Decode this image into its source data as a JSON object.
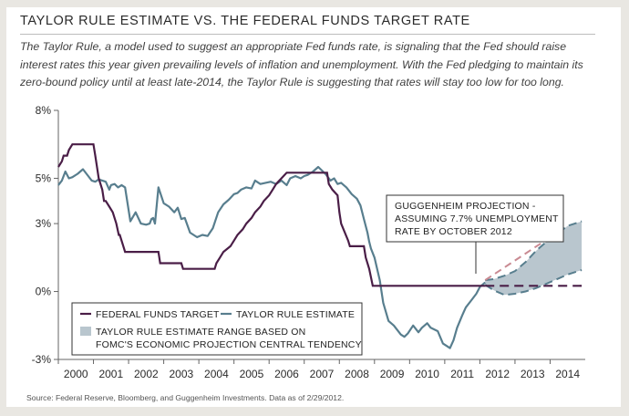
{
  "header": {
    "title": "TAYLOR RULE ESTIMATE VS. THE FEDERAL FUNDS TARGET RATE",
    "subtitle": "The Taylor Rule, a model used to suggest an appropriate Fed funds rate, is signaling that the Fed should raise interest rates this year given prevailing levels of inflation and unemployment.  With the Fed pledging to maintain its zero-bound policy until at least late-2014, the Taylor Rule is suggesting that rates will stay too low for too long."
  },
  "footer": {
    "source": "Source: Federal Reserve, Bloomberg, and Guggenheim Investments. Data as of 2/29/2012."
  },
  "chart_data": {
    "type": "line",
    "title": "TAYLOR RULE ESTIMATE VS. THE FEDERAL FUNDS TARGET RATE",
    "xlabel": "",
    "ylabel": "",
    "xlim": [
      2000,
      2015
    ],
    "ylim": [
      -3,
      8
    ],
    "y_ticks": [
      {
        "value": 8,
        "label": "8%"
      },
      {
        "value": 5,
        "label": "5%"
      },
      {
        "value": 3,
        "label": "3%"
      },
      {
        "value": 0,
        "label": "0%"
      },
      {
        "value": -3,
        "label": "-3%"
      }
    ],
    "x_ticks": [
      "2000",
      "2001",
      "2002",
      "2003",
      "2004",
      "2005",
      "2006",
      "2007",
      "2008",
      "2009",
      "2010",
      "2011",
      "2012",
      "2013",
      "2014"
    ],
    "grid": false,
    "legend_position": "bottom-left",
    "colors": {
      "fed_funds": "#4a1e47",
      "taylor": "#587e8e",
      "range_fill": "#b9c6ce",
      "projection": "#c98a92",
      "axis": "#666666"
    },
    "series": [
      {
        "name": "FEDERAL FUNDS TARGET",
        "x": [
          2000.0,
          2000.1,
          2000.15,
          2000.25,
          2000.3,
          2000.4,
          2000.45,
          2001.0,
          2001.05,
          2001.1,
          2001.15,
          2001.25,
          2001.3,
          2001.35,
          2001.45,
          2001.55,
          2001.65,
          2001.72,
          2001.75,
          2001.85,
          2001.9,
          2001.95,
          2002.85,
          2002.9,
          2003.5,
          2003.55,
          2004.45,
          2004.5,
          2004.6,
          2004.7,
          2004.9,
          2005.0,
          2005.1,
          2005.25,
          2005.35,
          2005.5,
          2005.6,
          2005.75,
          2005.85,
          2006.0,
          2006.1,
          2006.2,
          2006.35,
          2006.5,
          2007.65,
          2007.7,
          2007.8,
          2007.95,
          2008.0,
          2008.05,
          2008.25,
          2008.3,
          2008.7,
          2008.75,
          2008.85,
          2008.95,
          2012.15,
          2014.9
        ],
        "values": [
          5.5,
          5.75,
          6.0,
          6.0,
          6.25,
          6.5,
          6.5,
          6.5,
          6.0,
          5.5,
          5.0,
          4.5,
          4.0,
          4.0,
          3.75,
          3.5,
          3.0,
          2.5,
          2.5,
          2.0,
          1.75,
          1.75,
          1.75,
          1.25,
          1.25,
          1.0,
          1.0,
          1.25,
          1.5,
          1.75,
          2.0,
          2.25,
          2.5,
          2.75,
          3.0,
          3.25,
          3.5,
          3.75,
          4.0,
          4.25,
          4.5,
          4.75,
          5.0,
          5.25,
          5.25,
          4.75,
          4.5,
          4.25,
          3.5,
          3.0,
          2.25,
          2.0,
          2.0,
          1.5,
          1.0,
          0.25,
          0.25,
          0.25
        ]
      },
      {
        "name": "TAYLOR RULE ESTIMATE",
        "x": [
          2000.0,
          2000.1,
          2000.2,
          2000.3,
          2000.4,
          2000.55,
          2000.7,
          2000.85,
          2000.95,
          2001.05,
          2001.15,
          2001.25,
          2001.35,
          2001.45,
          2001.5,
          2001.6,
          2001.7,
          2001.8,
          2001.9,
          2002.05,
          2002.2,
          2002.35,
          2002.5,
          2002.6,
          2002.65,
          2002.7,
          2002.75,
          2002.85,
          2003.0,
          2003.15,
          2003.3,
          2003.4,
          2003.5,
          2003.6,
          2003.75,
          2003.95,
          2004.1,
          2004.25,
          2004.4,
          2004.55,
          2004.7,
          2004.85,
          2005.0,
          2005.1,
          2005.2,
          2005.35,
          2005.5,
          2005.6,
          2005.75,
          2005.9,
          2006.05,
          2006.2,
          2006.35,
          2006.5,
          2006.6,
          2006.75,
          2006.9,
          2007.0,
          2007.1,
          2007.25,
          2007.4,
          2007.6,
          2007.75,
          2007.85,
          2007.95,
          2008.05,
          2008.2,
          2008.35,
          2008.5,
          2008.6,
          2008.7,
          2008.8,
          2008.85,
          2008.9,
          2009.0,
          2009.15,
          2009.25,
          2009.4,
          2009.55,
          2009.75,
          2009.85,
          2009.95,
          2010.1,
          2010.25,
          2010.35,
          2010.5,
          2010.6,
          2010.8,
          2010.95,
          2011.05,
          2011.15,
          2011.25,
          2011.35,
          2011.5,
          2011.6,
          2011.75,
          2011.9,
          2012.0,
          2012.15
        ],
        "values": [
          4.7,
          4.9,
          5.3,
          5.0,
          5.05,
          5.2,
          5.4,
          5.1,
          4.9,
          4.85,
          4.95,
          4.9,
          4.85,
          4.5,
          4.7,
          4.75,
          4.6,
          4.7,
          4.6,
          3.1,
          3.5,
          3.0,
          2.95,
          3.0,
          3.2,
          3.25,
          3.0,
          4.6,
          3.9,
          3.75,
          3.5,
          3.7,
          3.2,
          3.25,
          2.6,
          2.4,
          2.5,
          2.45,
          2.8,
          3.5,
          3.85,
          4.05,
          4.3,
          4.35,
          4.5,
          4.6,
          4.55,
          4.9,
          4.75,
          4.8,
          4.85,
          4.75,
          4.9,
          4.7,
          5.0,
          5.1,
          5.0,
          5.1,
          5.15,
          5.3,
          5.5,
          5.2,
          4.9,
          5.0,
          4.75,
          4.8,
          4.6,
          4.3,
          4.1,
          3.8,
          3.2,
          2.6,
          2.2,
          1.9,
          1.5,
          0.5,
          -0.5,
          -1.3,
          -1.5,
          -1.9,
          -2.0,
          -1.85,
          -1.5,
          -1.8,
          -1.6,
          -1.4,
          -1.6,
          -1.75,
          -2.3,
          -2.4,
          -2.5,
          -2.15,
          -1.6,
          -1.05,
          -0.7,
          -0.4,
          -0.1,
          0.2,
          0.4
        ]
      }
    ],
    "range_band": {
      "name": "TAYLOR RULE ESTIMATE RANGE BASED ON FOMC'S ECONOMIC PROJECTION CENTRAL TENDENCY",
      "x": [
        2012.15,
        2012.4,
        2012.7,
        2013.0,
        2013.3,
        2013.6,
        2013.9,
        2014.2,
        2014.5,
        2014.9
      ],
      "upper": [
        0.5,
        0.55,
        0.7,
        0.9,
        1.3,
        1.8,
        2.2,
        2.55,
        2.9,
        3.1
      ],
      "lower": [
        0.3,
        0.05,
        -0.15,
        -0.1,
        0.0,
        0.15,
        0.35,
        0.55,
        0.75,
        0.95
      ]
    },
    "projection": {
      "label_lines": [
        "GUGGENHEIM PROJECTION -",
        "ASSUMING 7.7% UNEMPLOYMENT",
        "RATE BY OCTOBER 2012"
      ],
      "x": [
        2012.15,
        2014.25
      ],
      "values": [
        0.5,
        2.65
      ]
    },
    "legend": [
      {
        "key": "fed",
        "lines": [
          "FEDERAL FUNDS TARGET"
        ]
      },
      {
        "key": "taylor",
        "lines": [
          "TAYLOR RULE ESTIMATE"
        ]
      },
      {
        "key": "band",
        "lines": [
          "TAYLOR RULE ESTIMATE RANGE BASED ON",
          "FOMC'S ECONOMIC PROJECTION CENTRAL TENDENCY"
        ]
      }
    ]
  }
}
